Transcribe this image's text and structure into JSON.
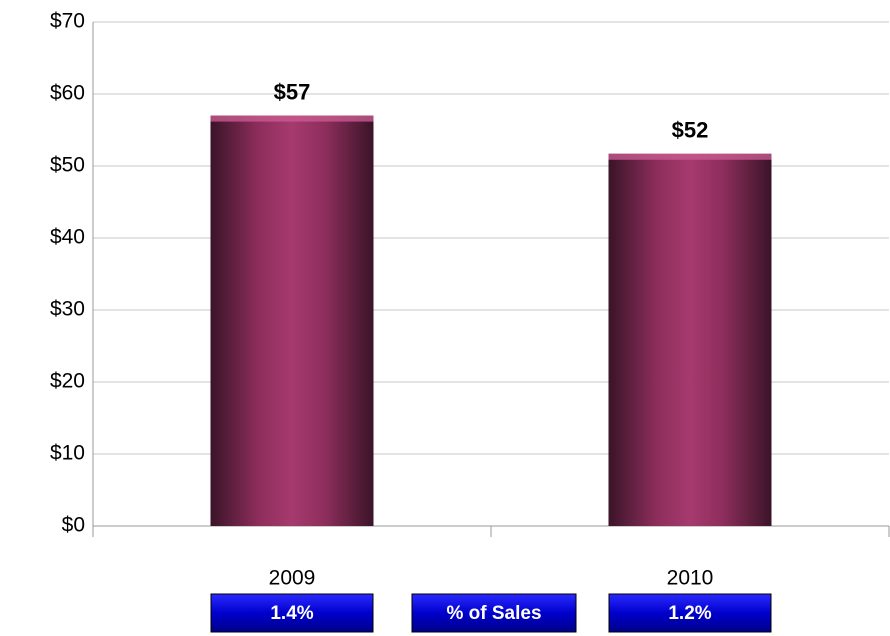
{
  "chart_data": {
    "type": "bar",
    "categories": [
      "2009",
      "2010"
    ],
    "values": [
      57,
      51.7
    ],
    "value_labels": [
      "$57",
      "$52"
    ],
    "color": "#a63a6e",
    "ylim": [
      0,
      70
    ],
    "yticks": [
      {
        "value": 0,
        "label": "$0"
      },
      {
        "value": 10,
        "label": "$10"
      },
      {
        "value": 20,
        "label": "$20"
      },
      {
        "value": 30,
        "label": "$30"
      },
      {
        "value": 40,
        "label": "$40"
      },
      {
        "value": 50,
        "label": "$50"
      },
      {
        "value": 60,
        "label": "$60"
      },
      {
        "value": 70,
        "label": "$70"
      }
    ],
    "grid": true,
    "percent_of_sales": {
      "label": "% of Sales",
      "values": [
        1.4,
        1.2
      ],
      "value_labels": [
        "1.4%",
        "1.2%"
      ],
      "color": "#0000cc"
    }
  }
}
